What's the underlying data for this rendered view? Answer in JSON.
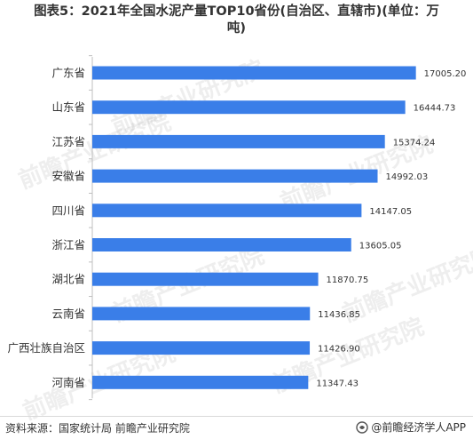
{
  "title": "图表5：2021年全国水泥产量TOP10省份(自治区、直辖市)(单位：万吨)",
  "title_line1": "图表5：2021年全国水泥产量TOP10省份(自治区、直辖市)(单位：万",
  "title_line2": "吨)",
  "footer": {
    "source": "资料来源：国家统计局 前瞻产业研究院",
    "brand": "@前瞻经济学人APP",
    "brand_icon": "qianzhan-logo-icon"
  },
  "watermark_text": "前瞻产业研究院",
  "colors": {
    "bar": "#3a7ee8",
    "text": "#333333"
  },
  "chart_data": {
    "type": "bar",
    "orientation": "horizontal",
    "categories": [
      "广东省",
      "山东省",
      "江苏省",
      "安徽省",
      "四川省",
      "浙江省",
      "湖北省",
      "云南省",
      "广西壮族自治区",
      "河南省"
    ],
    "values": [
      17005.2,
      16444.73,
      15374.24,
      14992.03,
      14147.05,
      13605.05,
      11870.75,
      11436.85,
      11426.9,
      11347.43
    ],
    "value_labels": [
      "17005.20",
      "16444.73",
      "15374.24",
      "14992.03",
      "14147.05",
      "13605.05",
      "11870.75",
      "11436.85",
      "11426.90",
      "11347.43"
    ],
    "xlim": [
      0,
      18000
    ],
    "grid": false,
    "legend": "none"
  }
}
